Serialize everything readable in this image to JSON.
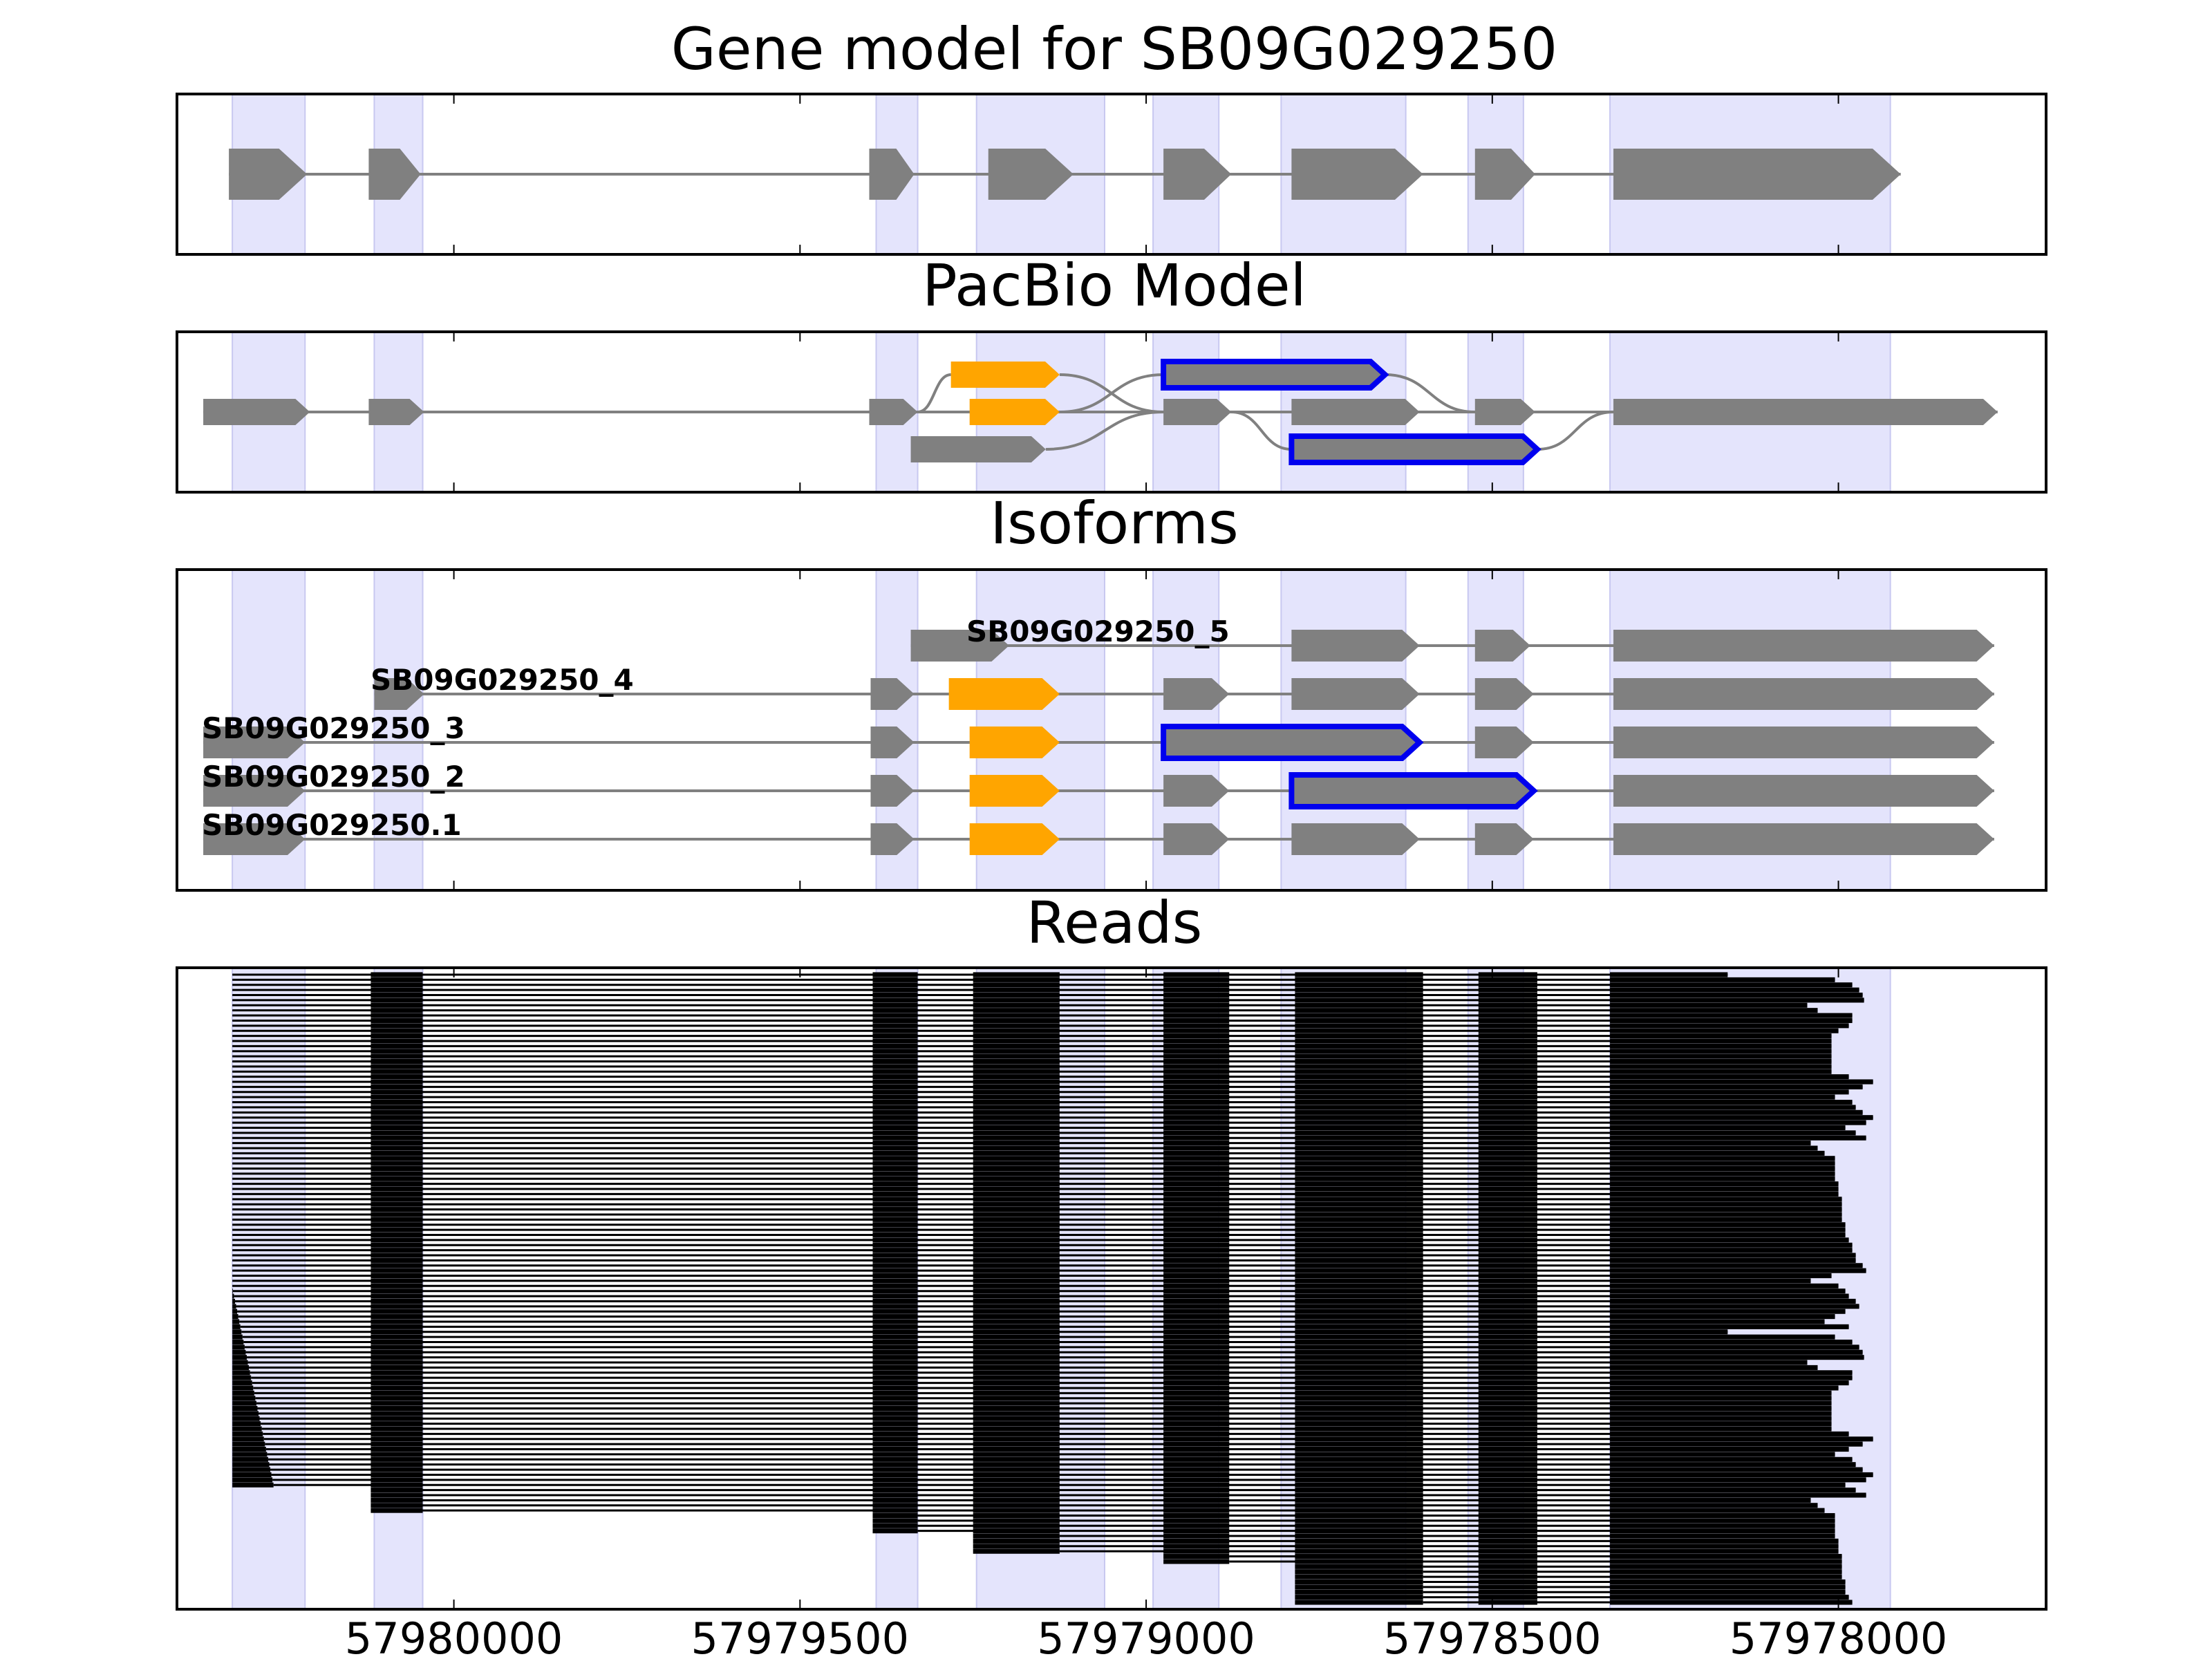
{
  "figure": {
    "panels": [
      {
        "id": "gene_model",
        "title": "Gene model for SB09G029250"
      },
      {
        "id": "pacbio",
        "title": "PacBio Model"
      },
      {
        "id": "isoforms",
        "title": "Isoforms"
      },
      {
        "id": "reads",
        "title": "Reads"
      }
    ],
    "x_axis": {
      "reversed": true,
      "range": [
        57980400,
        57977700
      ],
      "ticks": [
        "57980000",
        "57979500",
        "57979000",
        "57978500",
        "57978000"
      ],
      "tick_values": [
        57980000,
        57979500,
        57979000,
        57978500,
        57978000
      ]
    },
    "colors": {
      "exon": "#808080",
      "intron": "#808080",
      "alt_exon": "#ffa500",
      "highlight_outline": "#0000ee",
      "shade": "#e4e4fc",
      "read": "#000000",
      "axes": "#000000"
    },
    "shaded_exon_regions": [
      [
        57980320,
        57980215
      ],
      [
        57980115,
        57980045
      ],
      [
        57979390,
        57979330
      ],
      [
        57979245,
        57979060
      ],
      [
        57978990,
        57978895
      ],
      [
        57978805,
        57978625
      ],
      [
        57978535,
        57978455
      ],
      [
        57978330,
        57977925
      ]
    ]
  },
  "chart_data": {
    "type": "gene_structure",
    "title": "Gene model for SB09G029250",
    "xlabel": "",
    "ylabel": "",
    "x_ticks": [
      57980000,
      57979500,
      57979000,
      57978500,
      57978000
    ],
    "gene_model": {
      "exons": [
        [
          57980325,
          57980212
        ],
        [
          57980123,
          57980048
        ],
        [
          57979400,
          57979335
        ],
        [
          57979228,
          57979105
        ],
        [
          57978975,
          57978877
        ],
        [
          57978790,
          57978600
        ],
        [
          57978525,
          57978438
        ],
        [
          57978325,
          57977910
        ]
      ]
    },
    "pacbio_model": {
      "rows": 3,
      "exons": [
        {
          "start": 57980362,
          "end": 57980208,
          "row": 1,
          "color": "exon"
        },
        {
          "start": 57980123,
          "end": 57980043,
          "row": 1,
          "color": "exon"
        },
        {
          "start": 57979400,
          "end": 57979330,
          "row": 1,
          "color": "exon"
        },
        {
          "start": 57979282,
          "end": 57979125,
          "row": 0,
          "color": "alt_exon"
        },
        {
          "start": 57979255,
          "end": 57979125,
          "row": 1,
          "color": "alt_exon"
        },
        {
          "start": 57979340,
          "end": 57979145,
          "row": 2,
          "color": "exon"
        },
        {
          "start": 57978975,
          "end": 57978655,
          "row": 0,
          "color": "exon",
          "outlined": true
        },
        {
          "start": 57978975,
          "end": 57978877,
          "row": 1,
          "color": "exon"
        },
        {
          "start": 57978790,
          "end": 57978605,
          "row": 1,
          "color": "exon"
        },
        {
          "start": 57978790,
          "end": 57978435,
          "row": 2,
          "color": "exon",
          "outlined": true
        },
        {
          "start": 57978525,
          "end": 57978438,
          "row": 1,
          "color": "exon"
        },
        {
          "start": 57978325,
          "end": 57977770,
          "row": 1,
          "color": "exon"
        }
      ]
    },
    "isoforms": [
      {
        "name": "SB09G029250_5",
        "exons": [
          {
            "start": 57979340,
            "end": 57979198,
            "color": "exon"
          },
          {
            "start": 57978790,
            "end": 57978605,
            "color": "exon"
          },
          {
            "start": 57978525,
            "end": 57978445,
            "color": "exon"
          },
          {
            "start": 57978325,
            "end": 57977775,
            "color": "exon"
          }
        ]
      },
      {
        "name": "SB09G029250_4",
        "exons": [
          {
            "start": 57980115,
            "end": 57980043,
            "color": "exon"
          },
          {
            "start": 57979398,
            "end": 57979335,
            "color": "exon"
          },
          {
            "start": 57979285,
            "end": 57979125,
            "color": "alt_exon"
          },
          {
            "start": 57978975,
            "end": 57978880,
            "color": "exon"
          },
          {
            "start": 57978790,
            "end": 57978605,
            "color": "exon"
          },
          {
            "start": 57978525,
            "end": 57978440,
            "color": "exon"
          },
          {
            "start": 57978325,
            "end": 57977775,
            "color": "exon"
          }
        ]
      },
      {
        "name": "SB09G029250_3",
        "exons": [
          {
            "start": 57980362,
            "end": 57980215,
            "color": "exon"
          },
          {
            "start": 57979398,
            "end": 57979335,
            "color": "exon"
          },
          {
            "start": 57979255,
            "end": 57979125,
            "color": "alt_exon"
          },
          {
            "start": 57978975,
            "end": 57978605,
            "color": "exon",
            "outlined": true
          },
          {
            "start": 57978525,
            "end": 57978440,
            "color": "exon"
          },
          {
            "start": 57978325,
            "end": 57977775,
            "color": "exon"
          }
        ]
      },
      {
        "name": "SB09G029250_2",
        "exons": [
          {
            "start": 57980362,
            "end": 57980215,
            "color": "exon"
          },
          {
            "start": 57979398,
            "end": 57979335,
            "color": "exon"
          },
          {
            "start": 57979255,
            "end": 57979125,
            "color": "alt_exon"
          },
          {
            "start": 57978975,
            "end": 57978880,
            "color": "exon"
          },
          {
            "start": 57978790,
            "end": 57978440,
            "color": "exon",
            "outlined": true
          },
          {
            "start": 57978325,
            "end": 57977775,
            "color": "exon"
          }
        ]
      },
      {
        "name": "SB09G029250.1",
        "exons": [
          {
            "start": 57980362,
            "end": 57980215,
            "color": "exon"
          },
          {
            "start": 57979398,
            "end": 57979335,
            "color": "exon"
          },
          {
            "start": 57979255,
            "end": 57979125,
            "color": "alt_exon"
          },
          {
            "start": 57978975,
            "end": 57978880,
            "color": "exon"
          },
          {
            "start": 57978790,
            "end": 57978605,
            "color": "exon"
          },
          {
            "start": 57978525,
            "end": 57978440,
            "color": "exon"
          },
          {
            "start": 57978325,
            "end": 57977775,
            "color": "exon"
          }
        ]
      }
    ],
    "reads": {
      "count": 124,
      "blocks": [
        [
          57980215,
          57980320
        ],
        [
          57980045,
          57980120
        ],
        [
          57979330,
          57979395
        ],
        [
          57979125,
          57979250
        ],
        [
          57978880,
          57978975
        ],
        [
          57978600,
          57978785
        ],
        [
          57978435,
          57978520
        ],
        [
          57978330,
          57977910
        ]
      ],
      "end_positions": [
        57978160,
        57978005,
        57977980,
        57977970,
        57977965,
        57977963,
        57978045,
        57978030,
        57977980,
        57977980,
        57977985,
        57978000,
        57978010,
        57978010,
        57978010,
        57978010,
        57978010,
        57978010,
        57978010,
        57978010,
        57977985,
        57977950,
        57977965,
        57977985,
        57978005,
        57977980,
        57977975,
        57977965,
        57977950,
        57977960,
        57977990,
        57977975,
        57977960,
        57978040,
        57978030,
        57978020,
        57978005,
        57978005,
        57978005,
        57978005,
        57978005,
        57978000,
        57978000,
        57978000,
        57977995,
        57977995,
        57977995,
        57977995,
        57977995,
        57977990,
        57977990,
        57977990,
        57977985,
        57977980,
        57977980,
        57977975,
        57977975,
        57977965,
        57977960,
        57978010,
        57978040,
        57978000,
        57977990,
        57977985,
        57977975,
        57977970,
        57977990,
        57978005,
        57978020,
        57977985
      ]
    }
  }
}
